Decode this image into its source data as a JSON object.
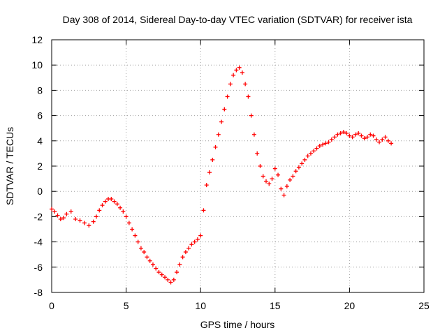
{
  "chart_data": {
    "type": "scatter",
    "title": "Day 308 of 2014, Sidereal Day-to-day VTEC variation (SDTVAR) for receiver ista",
    "xlabel": "GPS time / hours",
    "ylabel": "SDTVAR / TECUs",
    "xlim": [
      0,
      25
    ],
    "ylim": [
      -8,
      12
    ],
    "xticks": [
      "0",
      "5",
      "10",
      "15",
      "20",
      "25"
    ],
    "yticks": [
      "-8",
      "-6",
      "-4",
      "-2",
      "0",
      "2",
      "4",
      "6",
      "8",
      "10",
      "12"
    ],
    "grid": true,
    "marker": "+",
    "color": "#ff0000",
    "series": [
      {
        "name": "SDTVAR",
        "x": [
          0.0,
          0.2,
          0.4,
          0.6,
          0.8,
          1.0,
          1.3,
          1.6,
          1.9,
          2.2,
          2.5,
          2.8,
          3.0,
          3.2,
          3.4,
          3.6,
          3.8,
          4.0,
          4.2,
          4.4,
          4.6,
          4.8,
          5.0,
          5.2,
          5.4,
          5.6,
          5.8,
          6.0,
          6.2,
          6.4,
          6.6,
          6.8,
          7.0,
          7.2,
          7.4,
          7.6,
          7.8,
          8.0,
          8.2,
          8.4,
          8.6,
          8.8,
          9.0,
          9.2,
          9.4,
          9.6,
          9.8,
          10.0,
          10.2,
          10.4,
          10.6,
          10.8,
          11.0,
          11.2,
          11.4,
          11.6,
          11.8,
          12.0,
          12.2,
          12.4,
          12.6,
          12.8,
          13.0,
          13.2,
          13.4,
          13.6,
          13.8,
          14.0,
          14.2,
          14.4,
          14.6,
          14.8,
          15.0,
          15.2,
          15.4,
          15.6,
          15.8,
          16.0,
          16.2,
          16.4,
          16.6,
          16.8,
          17.0,
          17.2,
          17.4,
          17.6,
          17.8,
          18.0,
          18.2,
          18.4,
          18.6,
          18.8,
          19.0,
          19.2,
          19.4,
          19.6,
          19.8,
          20.0,
          20.2,
          20.4,
          20.6,
          20.8,
          21.0,
          21.2,
          21.4,
          21.6,
          21.8,
          22.0,
          22.2,
          22.4,
          22.6,
          22.8
        ],
        "y": [
          -1.4,
          -1.6,
          -1.9,
          -2.2,
          -2.1,
          -1.8,
          -1.6,
          -2.2,
          -2.3,
          -2.5,
          -2.7,
          -2.4,
          -2.0,
          -1.5,
          -1.1,
          -0.8,
          -0.6,
          -0.6,
          -0.8,
          -1.0,
          -1.3,
          -1.6,
          -2.0,
          -2.5,
          -3.0,
          -3.5,
          -4.0,
          -4.5,
          -4.8,
          -5.2,
          -5.5,
          -5.8,
          -6.1,
          -6.4,
          -6.6,
          -6.8,
          -7.0,
          -7.2,
          -7.0,
          -6.4,
          -5.8,
          -5.2,
          -4.8,
          -4.5,
          -4.2,
          -4.0,
          -3.8,
          -3.5,
          -1.5,
          0.5,
          1.5,
          2.5,
          3.5,
          4.5,
          5.5,
          6.5,
          7.5,
          8.5,
          9.2,
          9.6,
          9.8,
          9.4,
          8.5,
          7.5,
          6.0,
          4.5,
          3.0,
          2.0,
          1.2,
          0.8,
          0.6,
          1.0,
          1.8,
          1.3,
          0.2,
          -0.3,
          0.4,
          0.9,
          1.2,
          1.6,
          1.9,
          2.2,
          2.5,
          2.8,
          3.0,
          3.2,
          3.4,
          3.6,
          3.7,
          3.8,
          3.9,
          4.1,
          4.3,
          4.5,
          4.6,
          4.7,
          4.6,
          4.4,
          4.3,
          4.5,
          4.6,
          4.4,
          4.2,
          4.3,
          4.5,
          4.4,
          4.1,
          3.9,
          4.1,
          4.3,
          4.0,
          3.8
        ]
      }
    ]
  }
}
